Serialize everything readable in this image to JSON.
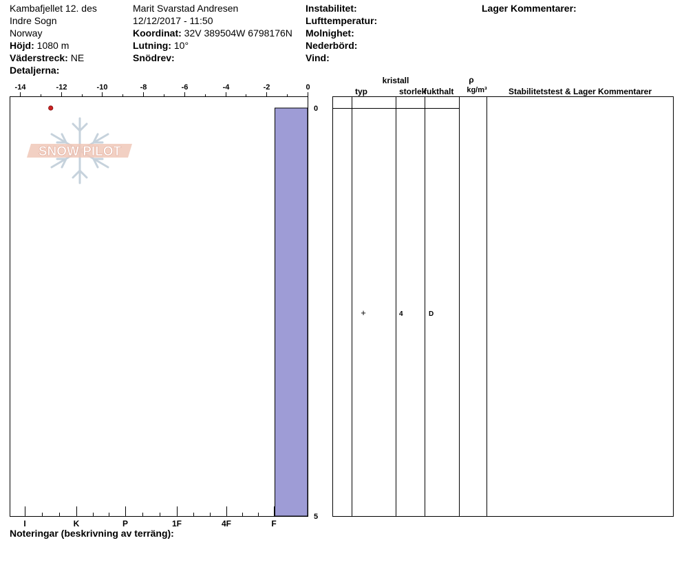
{
  "header": {
    "location": "Kambafjellet 12. des",
    "region": "Indre Sogn",
    "country": "Norway",
    "elevation_label": "Höjd:",
    "elevation_value": "1080 m",
    "aspect_label": "Väderstreck:",
    "aspect_value": "NE",
    "details_label": "Detaljerna:",
    "observer": "Marit Svarstad Andresen",
    "datetime": "12/12/2017 - 11:50",
    "coord_label": "Koordinat:",
    "coord_value": "32V 389504W 6798176N",
    "slope_label": "Lutning:",
    "slope_value": "10°",
    "drift_label": "Snödrev:",
    "instability_label": "Instabilitet:",
    "airtemp_label": "Lufttemperatur:",
    "clouds_label": "Molnighet:",
    "precip_label": "Nederbörd:",
    "wind_label": "Vind:",
    "layer_comments_label": "Lager Kommentarer:"
  },
  "table": {
    "col_crystal": "kristall",
    "col_type": "typ",
    "col_size": "storlek",
    "col_moisture": "fukthalt",
    "col_rho": "ρ",
    "col_density_unit": "kg/m³",
    "col_stability": "Stabilitetstest & Lager Kommentarer",
    "layer": {
      "type_symbol": "+",
      "size": "4",
      "moisture": "D"
    }
  },
  "footer": {
    "notes_label": "Noteringar (beskrivning av terräng):"
  },
  "watermark": {
    "text": "SNOW PILOT",
    "icon": "snowflake-icon"
  },
  "chart_data": {
    "type": "bar",
    "temperature_axis": {
      "ticks": [
        -14,
        -12,
        -10,
        -8,
        -6,
        -4,
        -2,
        0
      ],
      "range": [
        -14.5,
        0
      ]
    },
    "depth_axis": {
      "ticks": [
        0,
        5
      ],
      "range": [
        0,
        5
      ],
      "inverted": true
    },
    "hardness_axis": {
      "labels": [
        "I",
        "K",
        "P",
        "1F",
        "4F",
        "F"
      ]
    },
    "temperature_points": [
      {
        "temp": -12.5,
        "depth": 0
      }
    ],
    "hardness_layers": [
      {
        "top": 0,
        "bottom": 5,
        "hardness": "F",
        "color": "#9e9cd6"
      }
    ],
    "colors": {
      "layer_fill": "#9e9cd6",
      "temp_point": "#cc2222",
      "watermark_text": "#f0c8b8"
    }
  }
}
